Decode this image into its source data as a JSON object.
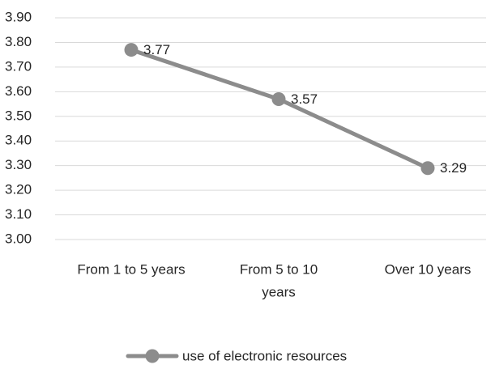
{
  "chart_data": {
    "type": "line",
    "title": "",
    "xlabel": "",
    "ylabel": "",
    "categories": [
      [
        "From 1 to 5 years"
      ],
      [
        "From 5 to 10",
        "years"
      ],
      [
        "Over 10 years"
      ]
    ],
    "series": [
      {
        "name": "use of electronic resources",
        "values": [
          3.77,
          3.57,
          3.29
        ],
        "labels": [
          "3.77",
          "3.57",
          "3.29"
        ],
        "color": "#8c8c8c"
      }
    ],
    "yticks": [
      "3.00",
      "3.10",
      "3.20",
      "3.30",
      "3.40",
      "3.50",
      "3.60",
      "3.70",
      "3.80",
      "3.90"
    ],
    "ylim": [
      3.0,
      3.9
    ],
    "grid": true,
    "gridColor": "#d9d9d9",
    "legend_position": "bottom"
  }
}
